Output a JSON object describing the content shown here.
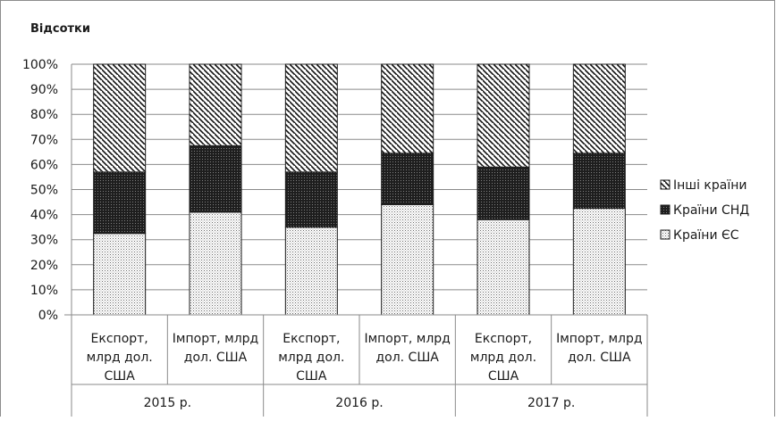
{
  "chart_data": {
    "type": "bar",
    "stacked": true,
    "percent": true,
    "ylabel": "Відсотки",
    "ylim": [
      0,
      100
    ],
    "y_ticks": [
      "0%",
      "10%",
      "20%",
      "30%",
      "40%",
      "50%",
      "60%",
      "70%",
      "80%",
      "90%",
      "100%"
    ],
    "groups": [
      "2015 р.",
      "2016 р.",
      "2017 р."
    ],
    "categories": [
      [
        "Експорт,",
        "млрд дол.",
        "США"
      ],
      [
        "Імпорт, млрд",
        "дол. США"
      ],
      [
        "Експорт,",
        "млрд дол.",
        "США"
      ],
      [
        "Імпорт, млрд",
        "дол. США"
      ],
      [
        "Експорт,",
        "млрд дол.",
        "США"
      ],
      [
        "Імпорт, млрд",
        "дол. США"
      ]
    ],
    "series": [
      {
        "name": "Країни ЄС",
        "values": [
          32.5,
          41,
          35,
          44,
          38,
          42.5
        ],
        "pattern": "dots"
      },
      {
        "name": "Країни СНД",
        "values": [
          24.5,
          26.5,
          22,
          20.5,
          21,
          22
        ],
        "pattern": "dark"
      },
      {
        "name": "Інші країни",
        "values": [
          43,
          32.5,
          43,
          35.5,
          41,
          35.5
        ],
        "pattern": "hatch"
      }
    ],
    "legend_order": [
      "Інші країни",
      "Країни СНД",
      "Країни ЄС"
    ],
    "legend_position": "right",
    "grid": true
  }
}
